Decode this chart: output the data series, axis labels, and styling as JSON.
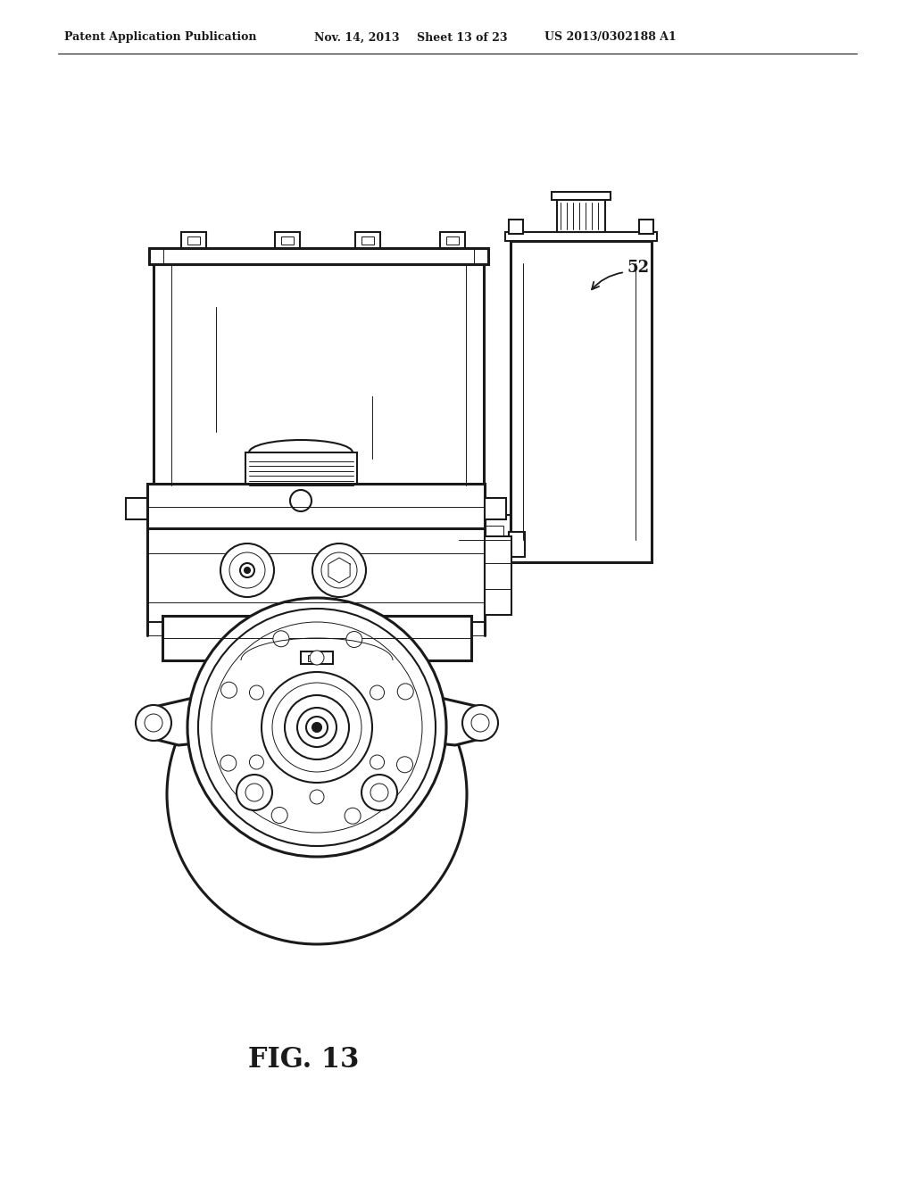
{
  "bg_color": "#ffffff",
  "lc": "#1a1a1a",
  "header_text": "Patent Application Publication",
  "header_date": "Nov. 14, 2013",
  "header_sheet": "Sheet 13 of 23",
  "header_patent": "US 2013/0302188 A1",
  "fig_label": "FIG. 13",
  "callout_label": "52",
  "lw": 1.5,
  "lw_thin": 0.7,
  "lw_thick": 2.2,
  "lw_xtick": 1.0
}
